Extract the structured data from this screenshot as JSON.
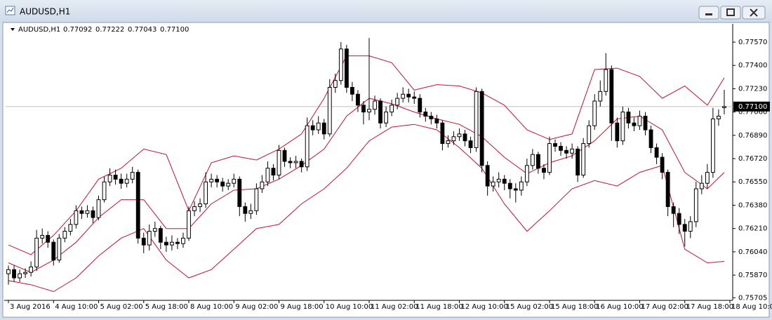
{
  "window": {
    "title": "AUDUSD,H1"
  },
  "chart_data": {
    "type": "candlestick",
    "title": "AUDUSD,H1",
    "ohlc": [
      "0.77092",
      "0.77222",
      "0.77043",
      "0.77100"
    ],
    "x": [
      0,
      1,
      2,
      3,
      4,
      5,
      6,
      7,
      8,
      9,
      10,
      11,
      12,
      13,
      14,
      15,
      16,
      17,
      18,
      19,
      20,
      21,
      22,
      23,
      24,
      25,
      26,
      27,
      28,
      29,
      30,
      31,
      32,
      33,
      34,
      35,
      36,
      37,
      38,
      39,
      40,
      41,
      42,
      43,
      44,
      45,
      46,
      47,
      48,
      49,
      50,
      51,
      52,
      53,
      54,
      55,
      56,
      57,
      58,
      59,
      60,
      61,
      62,
      63,
      64,
      65,
      66,
      67,
      68,
      69,
      70,
      71,
      72,
      73,
      74,
      75,
      76,
      77,
      78,
      79,
      80,
      81,
      82,
      83,
      84,
      85,
      86,
      87,
      88,
      89,
      90,
      91,
      92,
      93,
      94,
      95,
      96,
      97,
      98,
      99,
      100,
      101,
      102,
      103,
      104,
      105,
      106,
      107,
      108,
      109,
      110,
      111,
      112,
      113,
      114,
      115,
      116,
      117,
      118,
      119,
      120,
      121,
      122,
      123,
      124,
      125,
      126,
      127
    ],
    "open": [
      0.7588,
      0.7591,
      0.7585,
      0.7588,
      0.7589,
      0.7593,
      0.7614,
      0.7616,
      0.7611,
      0.7598,
      0.7614,
      0.7619,
      0.7624,
      0.7634,
      0.7632,
      0.7634,
      0.7629,
      0.7642,
      0.7655,
      0.766,
      0.7657,
      0.7654,
      0.7657,
      0.7662,
      0.7614,
      0.7609,
      0.7619,
      0.7621,
      0.7611,
      0.7609,
      0.7611,
      0.761,
      0.7614,
      0.7634,
      0.7637,
      0.7639,
      0.7655,
      0.7657,
      0.7655,
      0.7652,
      0.7654,
      0.7657,
      0.7637,
      0.7632,
      0.7634,
      0.765,
      0.7655,
      0.7665,
      0.766,
      0.7678,
      0.767,
      0.7669,
      0.767,
      0.7666,
      0.7696,
      0.7693,
      0.7698,
      0.769,
      0.7724,
      0.7729,
      0.7752,
      0.7724,
      0.7719,
      0.7711,
      0.7706,
      0.7708,
      0.7714,
      0.7698,
      0.7706,
      0.7711,
      0.7716,
      0.7719,
      0.7717,
      0.7716,
      0.7706,
      0.7703,
      0.7701,
      0.7698,
      0.7683,
      0.7685,
      0.7688,
      0.769,
      0.7685,
      0.768,
      0.7721,
      0.7667,
      0.7652,
      0.7655,
      0.7657,
      0.7654,
      0.765,
      0.7649,
      0.7655,
      0.7667,
      0.7675,
      0.7665,
      0.7662,
      0.7683,
      0.7681,
      0.7678,
      0.7676,
      0.7679,
      0.766,
      0.7683,
      0.7696,
      0.7714,
      0.7721,
      0.7737,
      0.7698,
      0.7685,
      0.7706,
      0.7698,
      0.7696,
      0.7703,
      0.7693,
      0.768,
      0.7673,
      0.7662,
      0.7637,
      0.7632,
      0.7624,
      0.7619,
      0.7626,
      0.765,
      0.7654,
      0.7662,
      0.7701,
      0.77092
    ],
    "high": [
      0.7594,
      0.7594,
      0.7591,
      0.7592,
      0.7597,
      0.762,
      0.7621,
      0.7619,
      0.7613,
      0.7617,
      0.7622,
      0.7628,
      0.7638,
      0.7637,
      0.7638,
      0.7637,
      0.7645,
      0.7659,
      0.7665,
      0.7664,
      0.7661,
      0.7661,
      0.7666,
      0.7664,
      0.7618,
      0.7624,
      0.7626,
      0.7623,
      0.7615,
      0.7616,
      0.7614,
      0.7618,
      0.7637,
      0.7641,
      0.7643,
      0.7662,
      0.7661,
      0.766,
      0.7658,
      0.7657,
      0.7661,
      0.7659,
      0.764,
      0.7639,
      0.7654,
      0.766,
      0.767,
      0.7668,
      0.7682,
      0.768,
      0.7673,
      0.7674,
      0.7672,
      0.7702,
      0.77,
      0.7703,
      0.7701,
      0.773,
      0.7734,
      0.7757,
      0.7755,
      0.7728,
      0.7722,
      0.7714,
      0.776,
      0.7718,
      0.7716,
      0.771,
      0.7715,
      0.772,
      0.7724,
      0.7723,
      0.7721,
      0.7719,
      0.7709,
      0.7706,
      0.7704,
      0.77,
      0.7689,
      0.7692,
      0.7694,
      0.7693,
      0.7688,
      0.7724,
      0.7723,
      0.767,
      0.7659,
      0.7662,
      0.766,
      0.7657,
      0.7654,
      0.7659,
      0.7672,
      0.7679,
      0.7677,
      0.7668,
      0.7688,
      0.7686,
      0.7684,
      0.7681,
      0.7683,
      0.7681,
      0.7687,
      0.77,
      0.7719,
      0.7729,
      0.7749,
      0.774,
      0.7702,
      0.771,
      0.7709,
      0.7702,
      0.7707,
      0.7706,
      0.7696,
      0.7683,
      0.7676,
      0.7664,
      0.764,
      0.7636,
      0.7628,
      0.763,
      0.7655,
      0.766,
      0.7668,
      0.7709,
      0.7708,
      0.77222
    ],
    "low": [
      0.758,
      0.7582,
      0.7582,
      0.7585,
      0.7586,
      0.759,
      0.761,
      0.7607,
      0.7594,
      0.7596,
      0.7611,
      0.7616,
      0.7621,
      0.7628,
      0.7629,
      0.7625,
      0.7627,
      0.764,
      0.7652,
      0.7653,
      0.765,
      0.7651,
      0.7654,
      0.761,
      0.7603,
      0.7605,
      0.7615,
      0.7606,
      0.7604,
      0.7605,
      0.7606,
      0.7607,
      0.7612,
      0.763,
      0.7633,
      0.7636,
      0.7651,
      0.7651,
      0.7648,
      0.7649,
      0.7651,
      0.763,
      0.7626,
      0.7628,
      0.7631,
      0.7647,
      0.7652,
      0.7656,
      0.7657,
      0.7666,
      0.7665,
      0.7665,
      0.7662,
      0.7663,
      0.7689,
      0.769,
      0.7686,
      0.7688,
      0.772,
      0.7726,
      0.772,
      0.7714,
      0.7706,
      0.7697,
      0.77,
      0.7704,
      0.7694,
      0.7695,
      0.7703,
      0.7708,
      0.7713,
      0.7713,
      0.7712,
      0.7702,
      0.7699,
      0.7697,
      0.7694,
      0.7678,
      0.768,
      0.7682,
      0.7685,
      0.7681,
      0.7676,
      0.7677,
      0.7662,
      0.7645,
      0.7648,
      0.7651,
      0.7649,
      0.7643,
      0.764,
      0.7645,
      0.7652,
      0.7664,
      0.7661,
      0.7657,
      0.766,
      0.7677,
      0.7674,
      0.7672,
      0.7672,
      0.7655,
      0.7658,
      0.768,
      0.7693,
      0.771,
      0.7718,
      0.7685,
      0.768,
      0.7682,
      0.7694,
      0.7692,
      0.7693,
      0.7689,
      0.7676,
      0.7668,
      0.7657,
      0.763,
      0.7622,
      0.7617,
      0.7608,
      0.7614,
      0.7622,
      0.7646,
      0.765,
      0.7658,
      0.7696,
      0.77043
    ],
    "close": [
      0.7591,
      0.7585,
      0.7588,
      0.7589,
      0.7593,
      0.7614,
      0.7616,
      0.7611,
      0.7598,
      0.7614,
      0.7619,
      0.7624,
      0.7634,
      0.7632,
      0.7634,
      0.7629,
      0.7642,
      0.7655,
      0.766,
      0.7657,
      0.7654,
      0.7657,
      0.7662,
      0.7614,
      0.7609,
      0.7619,
      0.7621,
      0.7611,
      0.7609,
      0.7611,
      0.761,
      0.7614,
      0.7634,
      0.7637,
      0.7639,
      0.7655,
      0.7657,
      0.7655,
      0.7652,
      0.7654,
      0.7657,
      0.7637,
      0.7632,
      0.7634,
      0.765,
      0.7655,
      0.7665,
      0.766,
      0.7678,
      0.767,
      0.7669,
      0.767,
      0.7666,
      0.7696,
      0.7693,
      0.7698,
      0.769,
      0.7724,
      0.7729,
      0.7752,
      0.7724,
      0.7719,
      0.7711,
      0.7706,
      0.7708,
      0.7714,
      0.7698,
      0.7706,
      0.7711,
      0.7716,
      0.7719,
      0.7717,
      0.7716,
      0.7706,
      0.7703,
      0.7701,
      0.7698,
      0.7683,
      0.7685,
      0.7688,
      0.769,
      0.7685,
      0.768,
      0.7721,
      0.7667,
      0.7652,
      0.7655,
      0.7657,
      0.7654,
      0.765,
      0.7649,
      0.7655,
      0.7667,
      0.7675,
      0.7665,
      0.7662,
      0.7683,
      0.7681,
      0.7678,
      0.7676,
      0.7679,
      0.766,
      0.7683,
      0.7696,
      0.7714,
      0.7721,
      0.7737,
      0.7698,
      0.7685,
      0.7706,
      0.7698,
      0.7696,
      0.7703,
      0.7693,
      0.768,
      0.7673,
      0.7662,
      0.7637,
      0.7632,
      0.7624,
      0.7619,
      0.7626,
      0.765,
      0.7654,
      0.7662,
      0.7701,
      0.7703,
      0.771
    ],
    "color_up": "#ffffff",
    "color_down": "#000000",
    "wick_color": "#000000",
    "bollinger": {
      "color": "#c8102e",
      "x": [
        0,
        4,
        8,
        12,
        16,
        20,
        24,
        28,
        32,
        36,
        40,
        44,
        48,
        52,
        56,
        60,
        64,
        68,
        72,
        76,
        80,
        84,
        88,
        92,
        96,
        100,
        104,
        108,
        112,
        116,
        120,
        124,
        127
      ],
      "upper": [
        0.7609,
        0.7602,
        0.7616,
        0.7634,
        0.7657,
        0.7665,
        0.7679,
        0.7675,
        0.7634,
        0.7669,
        0.7674,
        0.7671,
        0.7679,
        0.769,
        0.7716,
        0.7747,
        0.7747,
        0.7742,
        0.7722,
        0.7726,
        0.7725,
        0.772,
        0.7711,
        0.7693,
        0.7686,
        0.769,
        0.7737,
        0.7738,
        0.7732,
        0.7716,
        0.7725,
        0.7711,
        0.7731
      ],
      "middle": [
        0.7596,
        0.7589,
        0.7598,
        0.7611,
        0.7629,
        0.7642,
        0.7642,
        0.7621,
        0.7621,
        0.7639,
        0.7649,
        0.765,
        0.7657,
        0.7667,
        0.7679,
        0.7703,
        0.7716,
        0.7712,
        0.7706,
        0.7701,
        0.7697,
        0.7688,
        0.7673,
        0.7661,
        0.7669,
        0.7674,
        0.7685,
        0.7701,
        0.7703,
        0.7693,
        0.7662,
        0.765,
        0.7662
      ],
      "lower": [
        0.7583,
        0.758,
        0.7575,
        0.7585,
        0.7601,
        0.7614,
        0.7621,
        0.7598,
        0.7585,
        0.7591,
        0.7606,
        0.7621,
        0.7624,
        0.7639,
        0.765,
        0.7665,
        0.7685,
        0.7695,
        0.7697,
        0.7693,
        0.768,
        0.7665,
        0.7639,
        0.7619,
        0.7634,
        0.765,
        0.7656,
        0.7652,
        0.7662,
        0.7667,
        0.7606,
        0.7596,
        0.7597
      ]
    },
    "last_price": {
      "value": 0.771,
      "label": "0.77100"
    },
    "last_price_line_color": "#c0c0c0",
    "xlim": [
      -0.5,
      128.5
    ],
    "xticks": [
      {
        "value": 0,
        "label": "3 Aug 2016"
      },
      {
        "value": 8,
        "label": "4 Aug 10:00"
      },
      {
        "value": 16,
        "label": "5 Aug 02:00"
      },
      {
        "value": 24,
        "label": "5 Aug 18:00"
      },
      {
        "value": 32,
        "label": "8 Aug 10:00"
      },
      {
        "value": 40,
        "label": "9 Aug 02:00"
      },
      {
        "value": 48,
        "label": "9 Aug 18:00"
      },
      {
        "value": 56,
        "label": "10 Aug 10:00"
      },
      {
        "value": 64,
        "label": "11 Aug 02:00"
      },
      {
        "value": 72,
        "label": "11 Aug 18:00"
      },
      {
        "value": 80,
        "label": "12 Aug 10:00"
      },
      {
        "value": 88,
        "label": "15 Aug 02:00"
      },
      {
        "value": 96,
        "label": "15 Aug 18:00"
      },
      {
        "value": 104,
        "label": "16 Aug 10:00"
      },
      {
        "value": 112,
        "label": "17 Aug 02:00"
      },
      {
        "value": 120,
        "label": "17 Aug 18:00"
      },
      {
        "value": 128,
        "label": "18 Aug 10:00"
      }
    ],
    "ylim": [
      0.75686,
      0.77693
    ],
    "yticks": [
      {
        "value": 0.7757,
        "label": "0.77570"
      },
      {
        "value": 0.774,
        "label": "0.77400"
      },
      {
        "value": 0.7723,
        "label": "0.77230"
      },
      {
        "value": 0.7706,
        "label": "0.77060"
      },
      {
        "value": 0.7689,
        "label": "0.76890"
      },
      {
        "value": 0.7672,
        "label": "0.76720"
      },
      {
        "value": 0.7655,
        "label": "0.76550"
      },
      {
        "value": 0.7638,
        "label": "0.76380"
      },
      {
        "value": 0.7621,
        "label": "0.76210"
      },
      {
        "value": 0.7604,
        "label": "0.76040"
      },
      {
        "value": 0.7587,
        "label": "0.75870"
      },
      {
        "value": 0.75705,
        "label": "0.75705"
      }
    ],
    "grid": false
  }
}
